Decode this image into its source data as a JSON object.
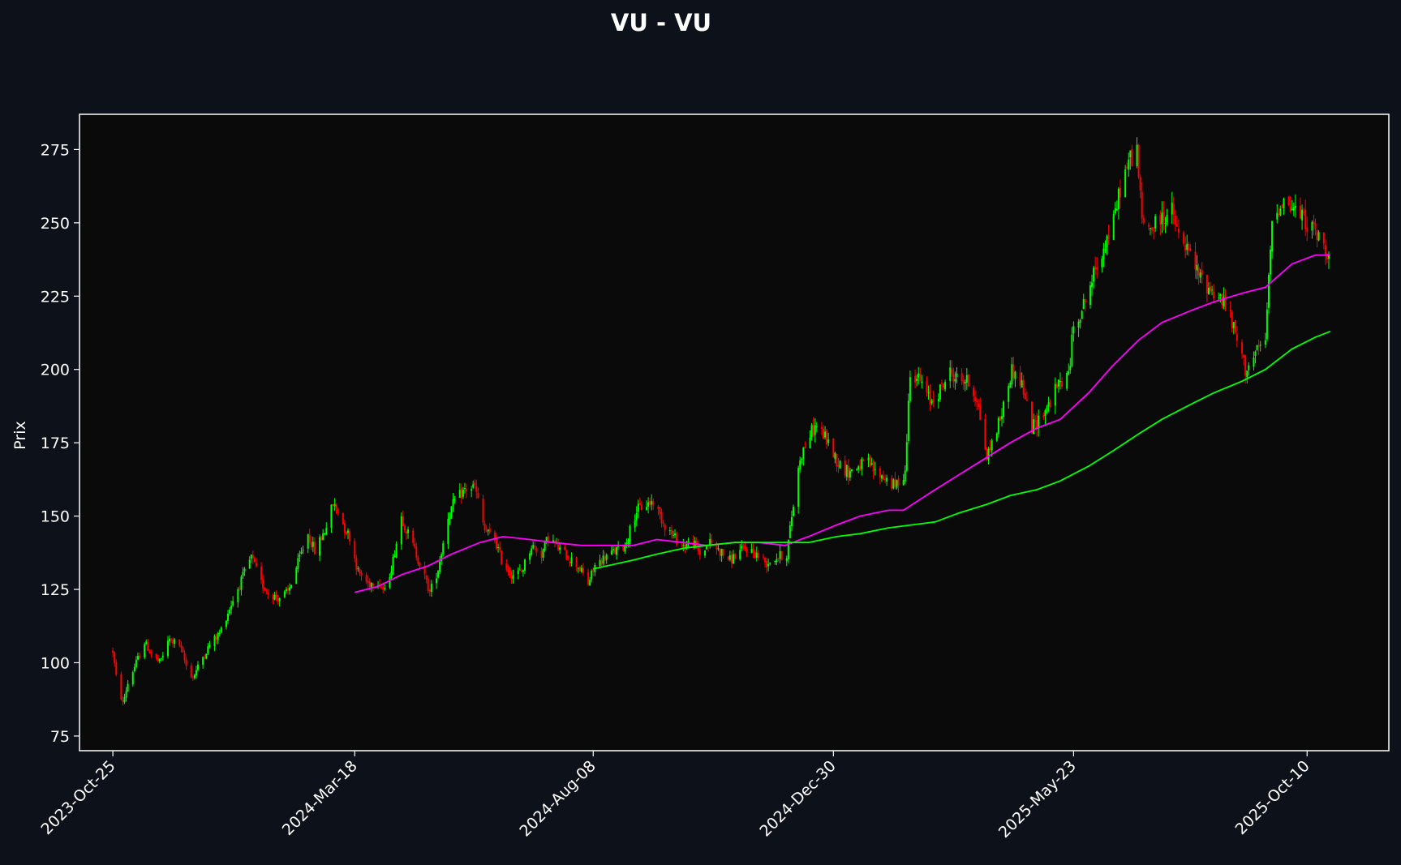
{
  "chart_data": {
    "type": "candlestick",
    "title": "VU - VU",
    "ylabel": "Prix",
    "xlabel": "",
    "ylim": [
      70,
      287
    ],
    "y_ticks": [
      75,
      100,
      125,
      150,
      175,
      200,
      225,
      250,
      275
    ],
    "x_range": [
      "2023-10-05",
      "2025-11-28"
    ],
    "x_ticks": [
      {
        "date": "2023-10-25",
        "label": "2023-Oct-25"
      },
      {
        "date": "2024-03-18",
        "label": "2024-Mar-18"
      },
      {
        "date": "2024-08-08",
        "label": "2024-Aug-08"
      },
      {
        "date": "2024-12-30",
        "label": "2024-Dec-30"
      },
      {
        "date": "2025-05-23",
        "label": "2025-May-23"
      },
      {
        "date": "2025-10-10",
        "label": "2025-Oct-10"
      }
    ],
    "colors": {
      "figure_bg": "#0d111a",
      "axes_bg": "#0a0a0a",
      "axes_edge": "#ffffff",
      "up": "#00ff00",
      "down": "#ff0000",
      "ma_short": "#ff00ff",
      "ma_long": "#00ff00"
    },
    "series": [
      {
        "kind": "close",
        "points": [
          [
            "2023-10-25",
            104
          ],
          [
            "2023-10-27",
            95
          ],
          [
            "2023-10-31",
            86
          ],
          [
            "2023-11-03",
            93
          ],
          [
            "2023-11-08",
            100
          ],
          [
            "2023-11-13",
            107
          ],
          [
            "2023-11-17",
            103
          ],
          [
            "2023-11-22",
            100
          ],
          [
            "2023-11-28",
            108
          ],
          [
            "2023-12-04",
            106
          ],
          [
            "2023-12-08",
            99
          ],
          [
            "2023-12-12",
            95
          ],
          [
            "2023-12-18",
            102
          ],
          [
            "2023-12-22",
            106
          ],
          [
            "2023-12-28",
            110
          ],
          [
            "2024-01-04",
            120
          ],
          [
            "2024-01-10",
            128
          ],
          [
            "2024-01-16",
            136
          ],
          [
            "2024-01-22",
            127
          ],
          [
            "2024-01-26",
            124
          ],
          [
            "2024-02-01",
            122
          ],
          [
            "2024-02-07",
            124
          ],
          [
            "2024-02-13",
            134
          ],
          [
            "2024-02-19",
            144
          ],
          [
            "2024-02-23",
            138
          ],
          [
            "2024-02-29",
            145
          ],
          [
            "2024-03-05",
            154
          ],
          [
            "2024-03-08",
            152
          ],
          [
            "2024-03-12",
            146
          ],
          [
            "2024-03-15",
            143
          ],
          [
            "2024-03-20",
            131
          ],
          [
            "2024-03-26",
            127
          ],
          [
            "2024-04-01",
            128
          ],
          [
            "2024-04-05",
            124
          ],
          [
            "2024-04-10",
            135
          ],
          [
            "2024-04-15",
            150
          ],
          [
            "2024-04-19",
            144
          ],
          [
            "2024-04-24",
            137
          ],
          [
            "2024-04-29",
            129
          ],
          [
            "2024-05-02",
            124
          ],
          [
            "2024-05-07",
            132
          ],
          [
            "2024-05-13",
            150
          ],
          [
            "2024-05-17",
            155
          ],
          [
            "2024-05-23",
            159
          ],
          [
            "2024-05-29",
            160
          ],
          [
            "2024-06-04",
            145
          ],
          [
            "2024-06-10",
            142
          ],
          [
            "2024-06-14",
            135
          ],
          [
            "2024-06-20",
            130
          ],
          [
            "2024-06-26",
            131
          ],
          [
            "2024-07-02",
            140
          ],
          [
            "2024-07-08",
            137
          ],
          [
            "2024-07-12",
            143
          ],
          [
            "2024-07-18",
            139
          ],
          [
            "2024-07-24",
            136
          ],
          [
            "2024-07-30",
            133
          ],
          [
            "2024-08-05",
            127
          ],
          [
            "2024-08-09",
            133
          ],
          [
            "2024-08-15",
            136
          ],
          [
            "2024-08-21",
            138
          ],
          [
            "2024-08-27",
            140
          ],
          [
            "2024-09-03",
            152
          ],
          [
            "2024-09-09",
            154
          ],
          [
            "2024-09-13",
            155
          ],
          [
            "2024-09-19",
            148
          ],
          [
            "2024-09-25",
            143
          ],
          [
            "2024-10-01",
            140
          ],
          [
            "2024-10-07",
            141
          ],
          [
            "2024-10-11",
            137
          ],
          [
            "2024-10-17",
            141
          ],
          [
            "2024-10-23",
            138
          ],
          [
            "2024-10-29",
            135
          ],
          [
            "2024-11-04",
            138
          ],
          [
            "2024-11-08",
            139
          ],
          [
            "2024-11-14",
            137
          ],
          [
            "2024-11-20",
            134
          ],
          [
            "2024-11-26",
            136
          ],
          [
            "2024-12-02",
            137
          ],
          [
            "2024-12-05",
            150
          ],
          [
            "2024-12-10",
            170
          ],
          [
            "2024-12-16",
            178
          ],
          [
            "2024-12-20",
            181
          ],
          [
            "2024-12-26",
            176
          ],
          [
            "2025-01-02",
            168
          ],
          [
            "2025-01-08",
            165
          ],
          [
            "2025-01-14",
            167
          ],
          [
            "2025-01-20",
            168
          ],
          [
            "2025-01-24",
            165
          ],
          [
            "2025-01-30",
            163
          ],
          [
            "2025-02-05",
            160
          ],
          [
            "2025-02-11",
            165
          ],
          [
            "2025-02-14",
            200
          ],
          [
            "2025-02-20",
            196
          ],
          [
            "2025-02-26",
            189
          ],
          [
            "2025-03-04",
            193
          ],
          [
            "2025-03-10",
            199
          ],
          [
            "2025-03-14",
            197
          ],
          [
            "2025-03-20",
            196
          ],
          [
            "2025-03-26",
            190
          ],
          [
            "2025-04-01",
            170
          ],
          [
            "2025-04-04",
            175
          ],
          [
            "2025-04-10",
            185
          ],
          [
            "2025-04-16",
            200
          ],
          [
            "2025-04-22",
            195
          ],
          [
            "2025-04-28",
            180
          ],
          [
            "2025-05-02",
            183
          ],
          [
            "2025-05-08",
            188
          ],
          [
            "2025-05-14",
            195
          ],
          [
            "2025-05-20",
            198
          ],
          [
            "2025-05-23",
            215
          ],
          [
            "2025-05-29",
            222
          ],
          [
            "2025-06-04",
            232
          ],
          [
            "2025-06-10",
            242
          ],
          [
            "2025-06-16",
            250
          ],
          [
            "2025-06-20",
            262
          ],
          [
            "2025-06-26",
            272
          ],
          [
            "2025-06-30",
            275
          ],
          [
            "2025-07-03",
            250
          ],
          [
            "2025-07-09",
            248
          ],
          [
            "2025-07-15",
            252
          ],
          [
            "2025-07-21",
            254
          ],
          [
            "2025-07-25",
            245
          ],
          [
            "2025-07-31",
            240
          ],
          [
            "2025-08-06",
            232
          ],
          [
            "2025-08-12",
            228
          ],
          [
            "2025-08-18",
            225
          ],
          [
            "2025-08-22",
            222
          ],
          [
            "2025-08-28",
            212
          ],
          [
            "2025-09-03",
            200
          ],
          [
            "2025-09-09",
            205
          ],
          [
            "2025-09-15",
            210
          ],
          [
            "2025-09-19",
            250
          ],
          [
            "2025-09-25",
            258
          ],
          [
            "2025-10-01",
            255
          ],
          [
            "2025-10-07",
            252
          ],
          [
            "2025-10-13",
            248
          ],
          [
            "2025-10-17",
            245
          ],
          [
            "2025-10-21",
            240
          ],
          [
            "2025-10-24",
            242
          ]
        ]
      },
      {
        "kind": "moving_average_short",
        "points": [
          [
            "2024-03-18",
            124
          ],
          [
            "2024-04-01",
            126
          ],
          [
            "2024-04-15",
            130
          ],
          [
            "2024-05-01",
            133
          ],
          [
            "2024-05-15",
            137
          ],
          [
            "2024-06-01",
            141
          ],
          [
            "2024-06-15",
            143
          ],
          [
            "2024-07-01",
            142
          ],
          [
            "2024-07-15",
            141
          ],
          [
            "2024-08-01",
            140
          ],
          [
            "2024-08-15",
            140
          ],
          [
            "2024-09-01",
            140
          ],
          [
            "2024-09-15",
            142
          ],
          [
            "2024-10-01",
            141
          ],
          [
            "2024-10-15",
            140
          ],
          [
            "2024-11-01",
            141
          ],
          [
            "2024-11-15",
            141
          ],
          [
            "2024-12-01",
            140
          ],
          [
            "2024-12-15",
            143
          ],
          [
            "2025-01-01",
            147
          ],
          [
            "2025-01-15",
            150
          ],
          [
            "2025-02-01",
            152
          ],
          [
            "2025-02-10",
            152
          ],
          [
            "2025-03-01",
            159
          ],
          [
            "2025-03-15",
            164
          ],
          [
            "2025-04-01",
            170
          ],
          [
            "2025-04-15",
            175
          ],
          [
            "2025-05-01",
            180
          ],
          [
            "2025-05-15",
            183
          ],
          [
            "2025-06-01",
            192
          ],
          [
            "2025-06-15",
            201
          ],
          [
            "2025-07-01",
            210
          ],
          [
            "2025-07-15",
            216
          ],
          [
            "2025-08-01",
            220
          ],
          [
            "2025-08-15",
            223
          ],
          [
            "2025-09-01",
            226
          ],
          [
            "2025-09-15",
            228
          ],
          [
            "2025-10-01",
            236
          ],
          [
            "2025-10-15",
            239
          ],
          [
            "2025-10-24",
            239
          ]
        ]
      },
      {
        "kind": "moving_average_long",
        "points": [
          [
            "2024-08-08",
            132
          ],
          [
            "2024-09-01",
            135
          ],
          [
            "2024-09-15",
            137
          ],
          [
            "2024-10-01",
            139
          ],
          [
            "2024-10-15",
            140
          ],
          [
            "2024-11-01",
            141
          ],
          [
            "2024-11-15",
            141
          ],
          [
            "2024-12-01",
            141
          ],
          [
            "2024-12-15",
            141
          ],
          [
            "2025-01-01",
            143
          ],
          [
            "2025-01-15",
            144
          ],
          [
            "2025-02-01",
            146
          ],
          [
            "2025-02-15",
            147
          ],
          [
            "2025-03-01",
            148
          ],
          [
            "2025-03-15",
            151
          ],
          [
            "2025-04-01",
            154
          ],
          [
            "2025-04-15",
            157
          ],
          [
            "2025-05-01",
            159
          ],
          [
            "2025-05-15",
            162
          ],
          [
            "2025-06-01",
            167
          ],
          [
            "2025-06-15",
            172
          ],
          [
            "2025-07-01",
            178
          ],
          [
            "2025-07-15",
            183
          ],
          [
            "2025-08-01",
            188
          ],
          [
            "2025-08-15",
            192
          ],
          [
            "2025-09-01",
            196
          ],
          [
            "2025-09-15",
            200
          ],
          [
            "2025-10-01",
            207
          ],
          [
            "2025-10-15",
            211
          ],
          [
            "2025-10-24",
            213
          ]
        ]
      }
    ]
  }
}
